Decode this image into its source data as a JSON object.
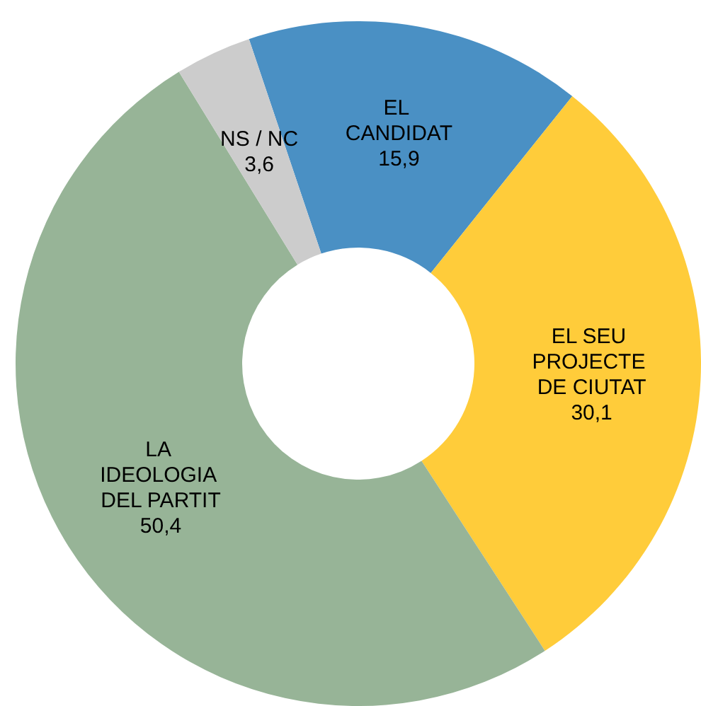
{
  "chart_data": {
    "type": "donut",
    "categories": [
      "EL CANDIDAT",
      "EL SEU PROJECTE DE CIUTAT",
      "LA IDEOLOGIA DEL PARTIT",
      "NS / NC"
    ],
    "values": [
      15.9,
      30.1,
      50.4,
      3.6
    ],
    "colors": [
      "#4a90c4",
      "#ffcc3a",
      "#97b497",
      "#cccccc"
    ],
    "value_labels": [
      "15,9",
      "30,1",
      "50,4",
      "3,6"
    ],
    "legend": false
  }
}
